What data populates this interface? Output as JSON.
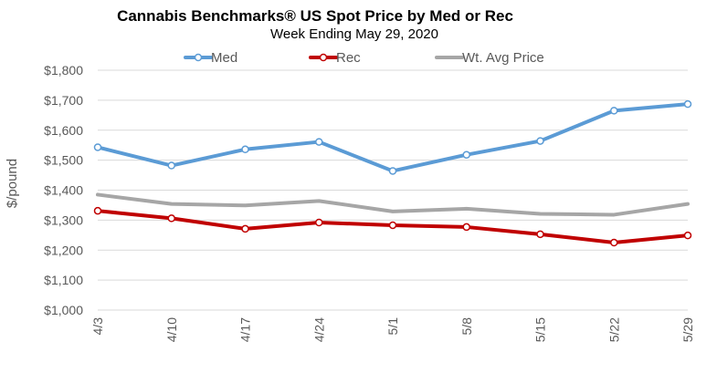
{
  "chart_data": {
    "type": "line",
    "title": "Cannabis Benchmarks® US Spot Price by Med or Rec",
    "subtitle": "Week Ending May 29, 2020",
    "ylabel": "$/pound",
    "xlabel": "",
    "categories": [
      "4/3",
      "4/10",
      "4/17",
      "4/24",
      "5/1",
      "5/8",
      "5/15",
      "5/22",
      "5/29"
    ],
    "ylim": [
      1000,
      1800
    ],
    "yticks": [
      1000,
      1100,
      1200,
      1300,
      1400,
      1500,
      1600,
      1700,
      1800
    ],
    "ytick_labels": [
      "$1,000",
      "$1,100",
      "$1,200",
      "$1,300",
      "$1,400",
      "$1,500",
      "$1,600",
      "$1,700",
      "$1,800"
    ],
    "grid": true,
    "legend_position": "top",
    "series": [
      {
        "name": "Med",
        "color": "#5b9bd5",
        "markers": true,
        "values": [
          1543,
          1482,
          1536,
          1561,
          1464,
          1518,
          1564,
          1665,
          1687
        ]
      },
      {
        "name": "Rec",
        "color": "#c00000",
        "markers": true,
        "values": [
          1331,
          1306,
          1271,
          1292,
          1283,
          1277,
          1253,
          1225,
          1249
        ]
      },
      {
        "name": "Wt. Avg Price",
        "color": "#a6a6a6",
        "markers": false,
        "values": [
          1385,
          1354,
          1349,
          1364,
          1329,
          1338,
          1321,
          1318,
          1354
        ]
      }
    ]
  }
}
